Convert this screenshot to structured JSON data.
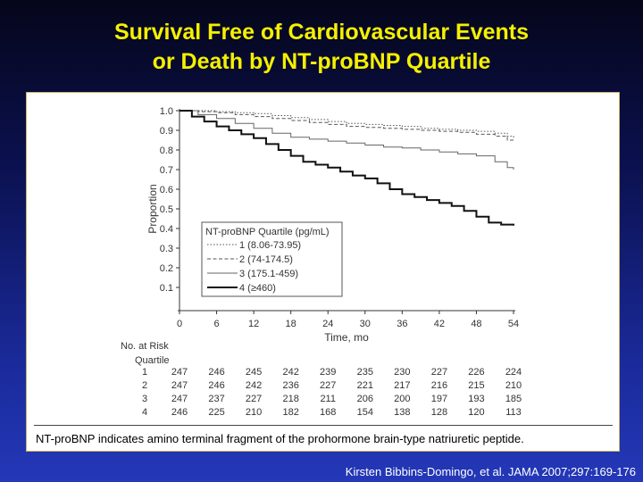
{
  "slide": {
    "title_line1": "Survival Free of Cardiovascular Events",
    "title_line2": "or Death by NT-proBNP Quartile",
    "footnote": "NT-proBNP indicates amino terminal fragment of the prohormone brain-type natriuretic peptide.",
    "citation": "Kirsten Bibbins-Domingo, et al. JAMA 2007;297:169-176"
  },
  "chart_data": {
    "type": "line",
    "title": "",
    "xlabel": "Time, mo",
    "ylabel": "Proportion",
    "xlim": [
      0,
      54
    ],
    "ylim": [
      0,
      1.0
    ],
    "x_ticks": [
      "0",
      "6",
      "12",
      "18",
      "24",
      "30",
      "36",
      "42",
      "48",
      "54"
    ],
    "y_ticks": [
      "1.0",
      "0.9",
      "0.8",
      "0.7",
      "0.6",
      "0.5",
      "0.4",
      "0.3",
      "0.2",
      "0.1"
    ],
    "legend_title": "NT-proBNP Quartile (pg/mL)",
    "legend_position": "bottom-left",
    "grid": false,
    "series": [
      {
        "name": "1 (8.06-73.95)",
        "style": "dotted",
        "x": [
          0,
          3,
          6,
          9,
          12,
          15,
          18,
          21,
          24,
          27,
          30,
          33,
          36,
          39,
          42,
          45,
          48,
          51,
          53,
          54
        ],
        "y": [
          1.0,
          1.0,
          0.995,
          0.99,
          0.985,
          0.975,
          0.965,
          0.955,
          0.945,
          0.935,
          0.93,
          0.925,
          0.92,
          0.91,
          0.905,
          0.9,
          0.895,
          0.885,
          0.87,
          0.86
        ]
      },
      {
        "name": "2 (74-174.5)",
        "style": "dashed",
        "x": [
          0,
          3,
          6,
          9,
          12,
          15,
          18,
          21,
          24,
          27,
          30,
          33,
          36,
          39,
          42,
          45,
          48,
          51,
          53,
          54
        ],
        "y": [
          1.0,
          0.995,
          0.99,
          0.98,
          0.97,
          0.96,
          0.95,
          0.94,
          0.93,
          0.92,
          0.915,
          0.91,
          0.905,
          0.9,
          0.895,
          0.89,
          0.88,
          0.87,
          0.85,
          0.84
        ]
      },
      {
        "name": "3 (175.1-459)",
        "style": "solid-thin",
        "x": [
          0,
          3,
          6,
          9,
          12,
          15,
          18,
          21,
          24,
          27,
          30,
          33,
          36,
          39,
          42,
          45,
          48,
          51,
          53,
          54
        ],
        "y": [
          1.0,
          0.98,
          0.96,
          0.935,
          0.91,
          0.885,
          0.865,
          0.855,
          0.845,
          0.835,
          0.825,
          0.815,
          0.81,
          0.8,
          0.79,
          0.78,
          0.77,
          0.74,
          0.71,
          0.7
        ]
      },
      {
        "name": "4 (≥460)",
        "style": "solid-thick",
        "x": [
          0,
          2,
          4,
          6,
          8,
          10,
          12,
          14,
          16,
          18,
          20,
          22,
          24,
          26,
          28,
          30,
          32,
          34,
          36,
          38,
          40,
          42,
          44,
          46,
          48,
          50,
          52,
          54
        ],
        "y": [
          1.0,
          0.97,
          0.945,
          0.92,
          0.9,
          0.88,
          0.86,
          0.83,
          0.8,
          0.77,
          0.74,
          0.725,
          0.71,
          0.69,
          0.67,
          0.655,
          0.63,
          0.6,
          0.575,
          0.56,
          0.545,
          0.53,
          0.515,
          0.49,
          0.46,
          0.43,
          0.42,
          0.415
        ]
      }
    ],
    "at_risk": {
      "header": "No. at Risk",
      "subheader": "Quartile",
      "rows": [
        {
          "label": "1",
          "values": [
            "247",
            "246",
            "245",
            "242",
            "239",
            "235",
            "230",
            "227",
            "226",
            "224"
          ]
        },
        {
          "label": "2",
          "values": [
            "247",
            "246",
            "242",
            "236",
            "227",
            "221",
            "217",
            "216",
            "215",
            "210"
          ]
        },
        {
          "label": "3",
          "values": [
            "247",
            "237",
            "227",
            "218",
            "211",
            "206",
            "200",
            "197",
            "193",
            "185"
          ]
        },
        {
          "label": "4",
          "values": [
            "246",
            "225",
            "210",
            "182",
            "168",
            "154",
            "138",
            "128",
            "120",
            "113"
          ]
        }
      ]
    }
  }
}
